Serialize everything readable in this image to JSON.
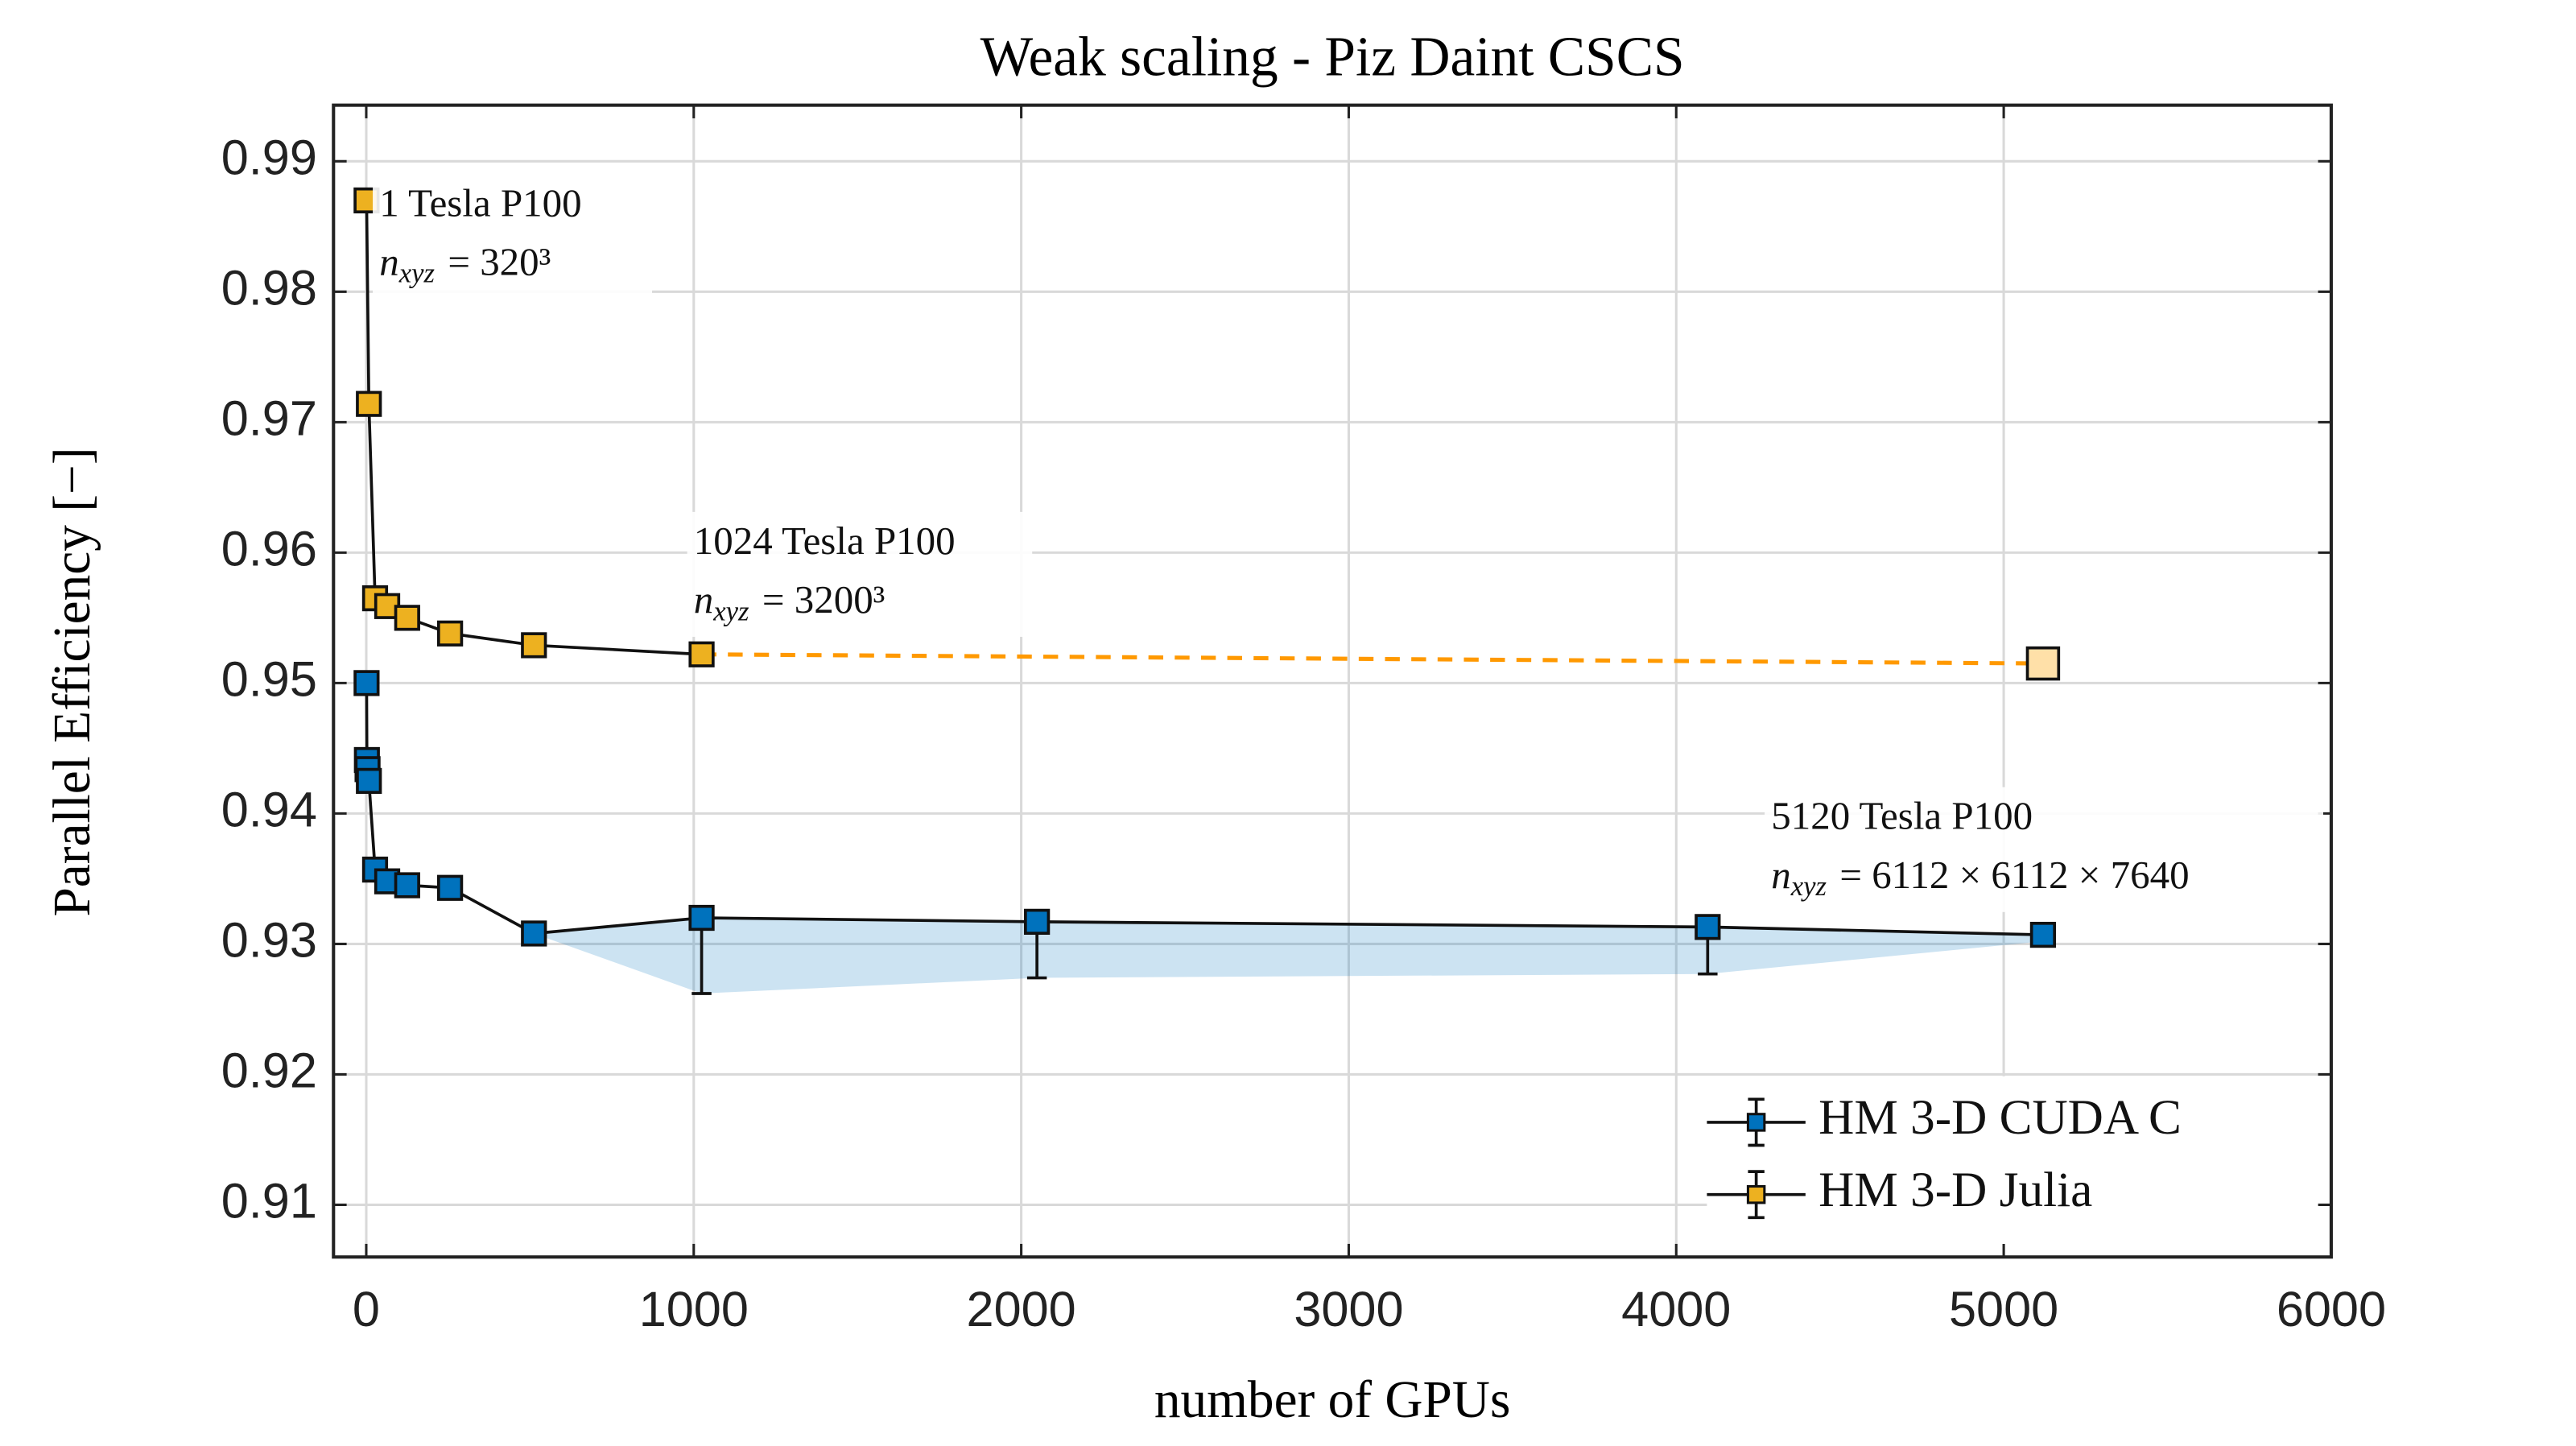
{
  "chart_data": {
    "type": "line",
    "title": "Weak scaling - Piz Daint CSCS",
    "xlabel": "number of GPUs",
    "ylabel": "Parallel Efficiency  [−]",
    "xlim": [
      -100,
      6000
    ],
    "ylim": [
      0.906,
      0.9943
    ],
    "xticks": [
      0,
      1000,
      2000,
      3000,
      4000,
      5000,
      6000
    ],
    "yticks": [
      0.91,
      0.92,
      0.93,
      0.94,
      0.95,
      0.96,
      0.97,
      0.98,
      0.99
    ],
    "grid": true,
    "legend": "lower right",
    "series": [
      {
        "name": "HM 3-D CUDA C",
        "color": "#0072bd",
        "x": [
          1,
          2,
          4,
          8,
          27,
          64,
          125,
          256,
          512,
          1024,
          2048,
          4096,
          5120
        ],
        "values": [
          0.95,
          0.9441,
          0.9434,
          0.9425,
          0.9357,
          0.9348,
          0.9345,
          0.9343,
          0.9308,
          0.932,
          0.9317,
          0.9313,
          0.9307
        ],
        "lower_errors": [
          null,
          null,
          null,
          null,
          null,
          null,
          null,
          null,
          0,
          0.0058,
          0.0043,
          0.0036,
          0.0005
        ]
      },
      {
        "name": "HM 3-D Julia",
        "color": "#edb120",
        "x": [
          1,
          8,
          27,
          64,
          125,
          256,
          512,
          1024
        ],
        "values": [
          0.987,
          0.9714,
          0.9565,
          0.9559,
          0.955,
          0.9538,
          0.9529,
          0.9522
        ]
      }
    ],
    "extrapolation": {
      "color": "#ff9900",
      "marker_color": "#ffe0a8",
      "x": [
        1024,
        5120
      ],
      "values": [
        0.9522,
        0.9515
      ]
    },
    "annotations": [
      {
        "text": "1 Tesla P100",
        "symbol": "n",
        "subscript": "xyz",
        "rhs": "= 320³",
        "x": 40,
        "y": 0.9865
      },
      {
        "text": "1024 Tesla P100",
        "symbol": "n",
        "subscript": "xyz",
        "rhs": "= 3200³",
        "x": 1000,
        "y": 0.9606
      },
      {
        "text": "5120 Tesla P100",
        "symbol": "n",
        "subscript": "xyz",
        "rhs": "= 6112 × 6112 × 7640",
        "x": 4290,
        "y": 0.9395
      }
    ]
  }
}
